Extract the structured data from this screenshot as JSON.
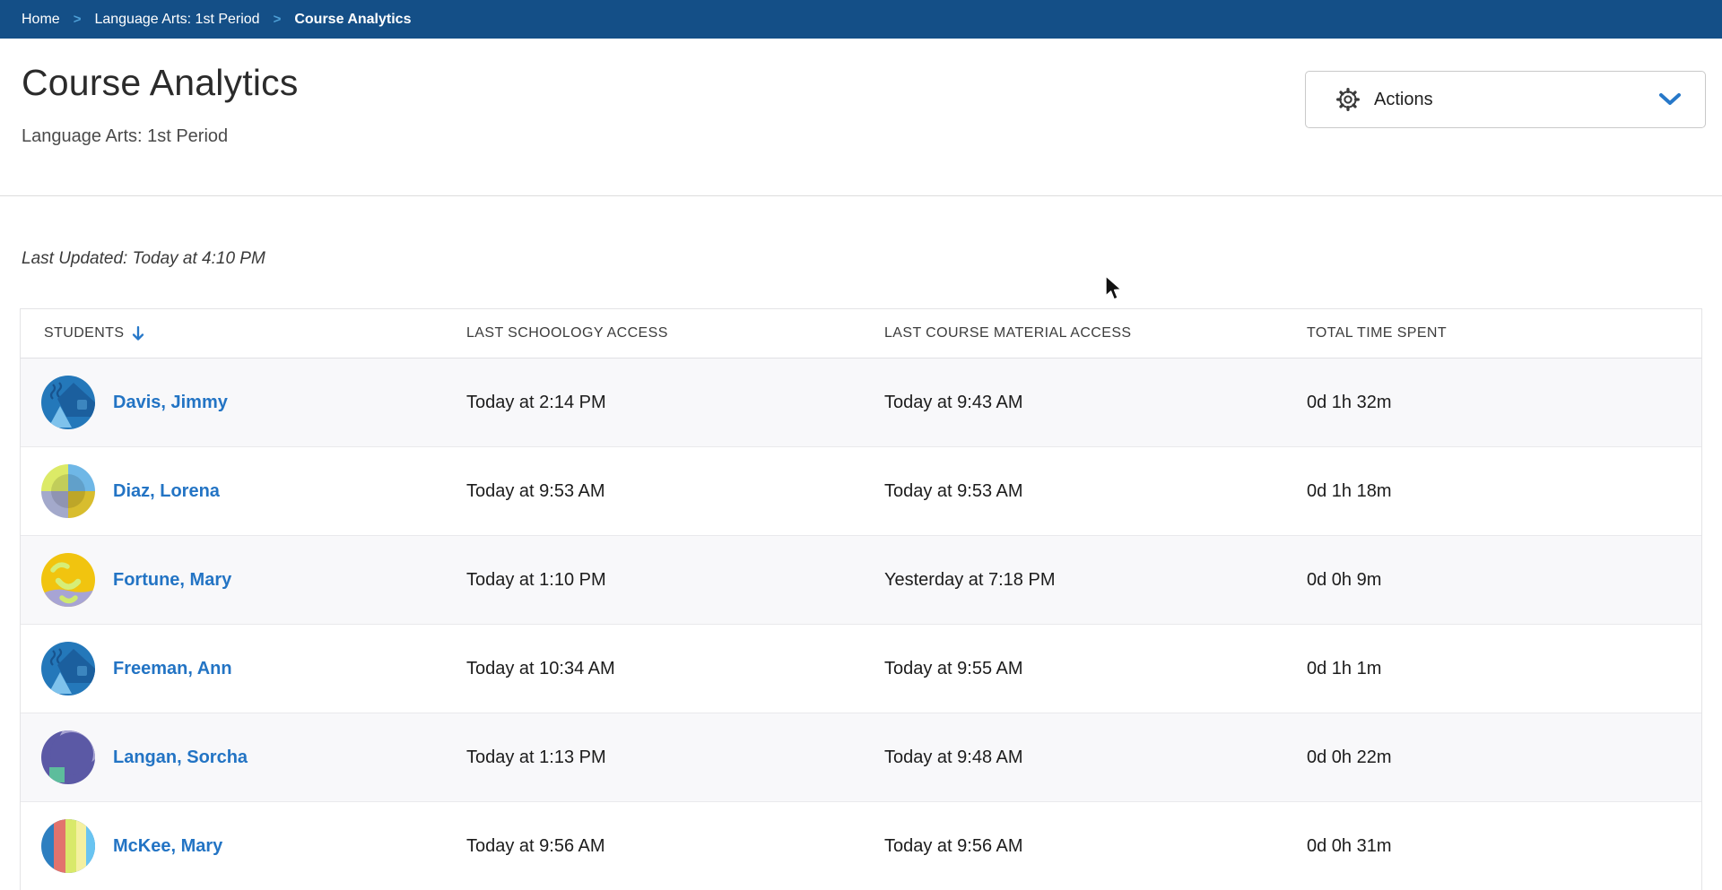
{
  "colors": {
    "breadcrumb_bg": "#144f87",
    "link_blue": "#2374c4",
    "accent_blue": "#2778c9"
  },
  "breadcrumb": {
    "separator": ">",
    "items": [
      {
        "label": "Home"
      },
      {
        "label": "Language Arts: 1st Period"
      },
      {
        "label": "Course Analytics"
      }
    ]
  },
  "page": {
    "title": "Course Analytics",
    "subtitle": "Language Arts: 1st Period"
  },
  "actions": {
    "label": "Actions",
    "icon": "gear-icon",
    "chevron_icon": "chevron-down-icon"
  },
  "status": {
    "last_updated": "Last Updated: Today at 4:10 PM"
  },
  "table": {
    "columns": [
      "Students",
      "Last Schoology Access",
      "Last Course Material Access",
      "Total Time Spent"
    ],
    "sort": {
      "column": "Students",
      "icon": "arrow-down"
    },
    "rows": [
      {
        "student": "Davis, Jimmy",
        "avatar": "blue-peaks",
        "last_schoology_access": "Today at 2:14 PM",
        "last_course_material_access": "Today at 9:43 AM",
        "total_time_spent": "0d 1h 32m"
      },
      {
        "student": "Diaz, Lorena",
        "avatar": "quadrants",
        "last_schoology_access": "Today at 9:53 AM",
        "last_course_material_access": "Today at 9:53 AM",
        "total_time_spent": "0d 1h 18m"
      },
      {
        "student": "Fortune, Mary",
        "avatar": "sun-face",
        "last_schoology_access": "Today at 1:10 PM",
        "last_course_material_access": "Yesterday at 7:18 PM",
        "total_time_spent": "0d 0h 9m"
      },
      {
        "student": "Freeman, Ann",
        "avatar": "blue-peaks",
        "last_schoology_access": "Today at 10:34 AM",
        "last_course_material_access": "Today at 9:55 AM",
        "total_time_spent": "0d 1h 1m"
      },
      {
        "student": "Langan, Sorcha",
        "avatar": "purple-moon",
        "last_schoology_access": "Today at 1:13 PM",
        "last_course_material_access": "Today at 9:48 AM",
        "total_time_spent": "0d 0h 22m"
      },
      {
        "student": "McKee, Mary",
        "avatar": "stripes",
        "last_schoology_access": "Today at 9:56 AM",
        "last_course_material_access": "Today at 9:56 AM",
        "total_time_spent": "0d 0h 31m"
      }
    ]
  }
}
